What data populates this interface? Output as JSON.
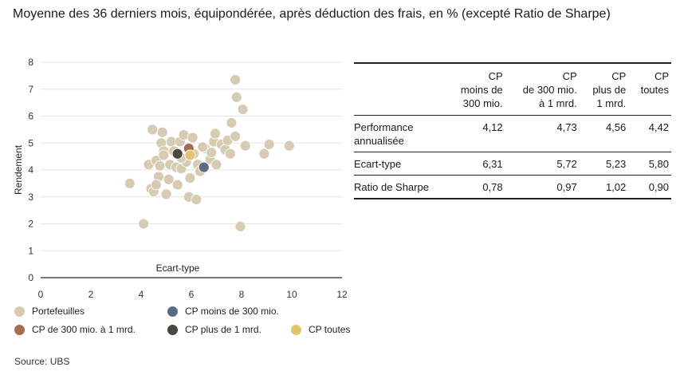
{
  "header": {
    "title": "Moyenne des 36 derniers mois, équipondérée, après déduction des frais, en % (excepté Ratio de Sharpe)"
  },
  "chart_data": {
    "type": "scatter",
    "xlabel": "Ecart-type",
    "ylabel": "Rendement",
    "xlim": [
      0,
      12
    ],
    "ylim": [
      0,
      8
    ],
    "xticks": [
      "0",
      "2",
      "4",
      "6",
      "8",
      "10",
      "12"
    ],
    "yticks": [
      "0",
      "1",
      "2",
      "3",
      "4",
      "5",
      "6",
      "7",
      "8"
    ],
    "grid": "horizontal",
    "legend_position": "bottom",
    "series": [
      {
        "name": "Portefeuilles",
        "color": "#d8cbb4",
        "points": [
          [
            3.55,
            3.5
          ],
          [
            4.1,
            2.0
          ],
          [
            4.3,
            4.2
          ],
          [
            4.4,
            3.3
          ],
          [
            4.45,
            5.5
          ],
          [
            4.5,
            3.2
          ],
          [
            4.6,
            4.35
          ],
          [
            4.7,
            3.75
          ],
          [
            4.75,
            4.15
          ],
          [
            4.8,
            5.0
          ],
          [
            4.85,
            5.4
          ],
          [
            4.9,
            4.7
          ],
          [
            4.9,
            4.55
          ],
          [
            5.0,
            3.1
          ],
          [
            5.1,
            3.65
          ],
          [
            5.15,
            4.2
          ],
          [
            5.2,
            5.05
          ],
          [
            5.3,
            4.7
          ],
          [
            5.4,
            4.1
          ],
          [
            5.45,
            3.45
          ],
          [
            5.55,
            5.05
          ],
          [
            5.6,
            4.05
          ],
          [
            5.7,
            5.3
          ],
          [
            5.8,
            4.3
          ],
          [
            5.9,
            3.0
          ],
          [
            5.95,
            3.7
          ],
          [
            6.05,
            5.2
          ],
          [
            6.1,
            4.6
          ],
          [
            6.2,
            2.9
          ],
          [
            6.25,
            4.2
          ],
          [
            6.35,
            3.95
          ],
          [
            6.55,
            4.8
          ],
          [
            6.75,
            4.4
          ],
          [
            6.8,
            4.65
          ],
          [
            6.9,
            5.05
          ],
          [
            6.95,
            5.35
          ],
          [
            7.0,
            4.2
          ],
          [
            7.2,
            4.95
          ],
          [
            7.35,
            4.75
          ],
          [
            7.45,
            5.1
          ],
          [
            7.55,
            4.6
          ],
          [
            7.6,
            5.75
          ],
          [
            7.75,
            5.25
          ],
          [
            7.75,
            7.35
          ],
          [
            7.8,
            6.7
          ],
          [
            7.95,
            1.9
          ],
          [
            8.05,
            6.25
          ],
          [
            8.15,
            4.9
          ],
          [
            8.9,
            4.6
          ],
          [
            9.1,
            4.95
          ],
          [
            9.9,
            4.9
          ],
          [
            4.6,
            3.45
          ],
          [
            5.6,
            4.45
          ],
          [
            6.45,
            4.85
          ]
        ]
      },
      {
        "name": "CP moins de 300 mio.",
        "color": "#5a6b82",
        "points": [
          [
            6.5,
            4.1
          ]
        ]
      },
      {
        "name": "CP de 300 mio. à 1 mrd.",
        "color": "#a86a55",
        "points": [
          [
            5.9,
            4.8
          ]
        ]
      },
      {
        "name": "CP plus de 1 mrd.",
        "color": "#4a4640",
        "points": [
          [
            5.45,
            4.6
          ]
        ]
      },
      {
        "name": "CP toutes",
        "color": "#e2c46e",
        "points": [
          [
            5.95,
            4.55
          ]
        ]
      }
    ]
  },
  "table": {
    "columns": [
      {
        "lines": [
          ""
        ]
      },
      {
        "lines": [
          "CP",
          "moins de",
          "300 mio."
        ]
      },
      {
        "lines": [
          "CP",
          "de 300 mio.",
          "à 1 mrd."
        ]
      },
      {
        "lines": [
          "CP",
          "plus de",
          "1 mrd."
        ]
      },
      {
        "lines": [
          "CP",
          "toutes"
        ]
      }
    ],
    "rows": [
      {
        "label": "Performance annualisée",
        "values": [
          "4,12",
          "4,73",
          "4,56",
          "4,42"
        ]
      },
      {
        "label": "Ecart-type",
        "values": [
          "6,31",
          "5,72",
          "5,23",
          "5,80"
        ]
      },
      {
        "label": "Ratio de Sharpe",
        "values": [
          "0,78",
          "0,97",
          "1,02",
          "0,90"
        ]
      }
    ]
  },
  "footer": {
    "source": "Source: UBS"
  }
}
